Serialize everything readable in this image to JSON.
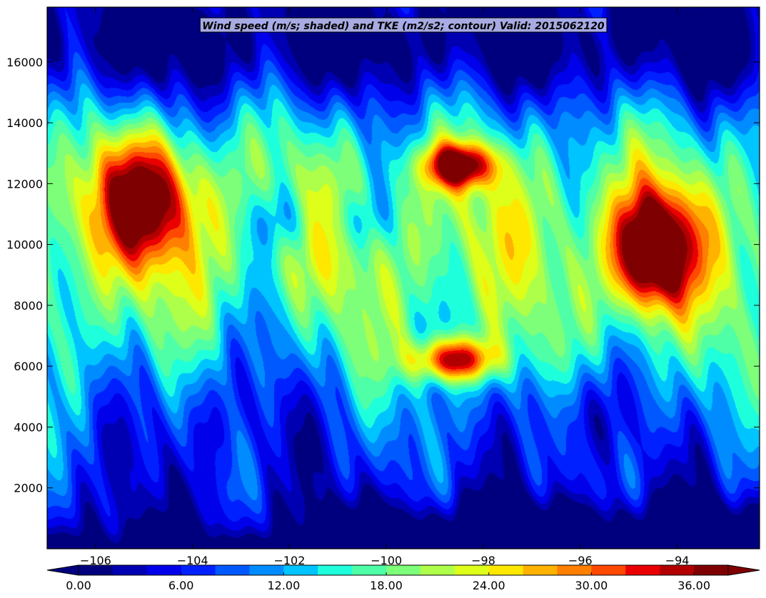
{
  "chart_data": {
    "type": "heatmap",
    "title": "Wind speed (m/s; shaded) and TKE (m2/s2; contour) Valid: 2015062120",
    "xlabel": "",
    "ylabel": "",
    "xlim": [
      -107.0,
      -92.3
    ],
    "ylim": [
      0,
      17800
    ],
    "x_ticks": [
      -106,
      -104,
      -102,
      -100,
      -98,
      -96,
      -94
    ],
    "x_tick_labels": [
      "−106",
      "−104",
      "−102",
      "−100",
      "−98",
      "−96",
      "−94"
    ],
    "y_ticks": [
      2000,
      4000,
      6000,
      8000,
      10000,
      12000,
      14000,
      16000
    ],
    "y_tick_labels": [
      "2000",
      "4000",
      "6000",
      "8000",
      "10000",
      "12000",
      "14000",
      "16000"
    ],
    "grid": false,
    "colorbar": {
      "orientation": "horizontal",
      "extend": "both",
      "levels": [
        0,
        2,
        4,
        6,
        8,
        10,
        12,
        14,
        16,
        18,
        20,
        22,
        24,
        26,
        28,
        30,
        32,
        34,
        36,
        38,
        40
      ],
      "tick_values": [
        0,
        6,
        12,
        18,
        24,
        30,
        36
      ],
      "tick_labels": [
        "0.00",
        "6.00",
        "12.00",
        "18.00",
        "24.00",
        "30.00",
        "36.00"
      ],
      "colors": [
        "#00007f",
        "#0000b2",
        "#0000ea",
        "#0020ff",
        "#0058ff",
        "#008cff",
        "#00c4ff",
        "#1effdc",
        "#4effa7",
        "#7dff79",
        "#aeff49",
        "#ddff1a",
        "#ffe800",
        "#ffb200",
        "#ff7f00",
        "#ff4800",
        "#ea0000",
        "#b20000",
        "#7f0000"
      ],
      "under_color": "#00007f",
      "over_color": "#7f0000"
    },
    "features": [
      {
        "x": -94.5,
        "y": 9800,
        "value": 33,
        "sx": 0.55,
        "sy": 1300
      },
      {
        "x": -98.6,
        "y": 6200,
        "value": 26,
        "sx": 0.6,
        "sy": 500
      },
      {
        "x": -105.0,
        "y": 11500,
        "value": 22,
        "sx": 0.8,
        "sy": 1400
      },
      {
        "x": -98.5,
        "y": 12600,
        "value": 27,
        "sx": 0.5,
        "sy": 500
      },
      {
        "x": -102.2,
        "y": 10800,
        "value": -8,
        "sx": 0.5,
        "sy": 800
      },
      {
        "x": -100.5,
        "y": 10800,
        "value": -6,
        "sx": 0.4,
        "sy": 700
      },
      {
        "x": -103.2,
        "y": 4800,
        "value": -6,
        "sx": 1.3,
        "sy": 1500
      },
      {
        "x": -96.0,
        "y": 4500,
        "value": -8,
        "sx": 0.7,
        "sy": 1200
      },
      {
        "x": -102.5,
        "y": 7500,
        "value": -3,
        "sx": 0.6,
        "sy": 1000
      }
    ]
  }
}
